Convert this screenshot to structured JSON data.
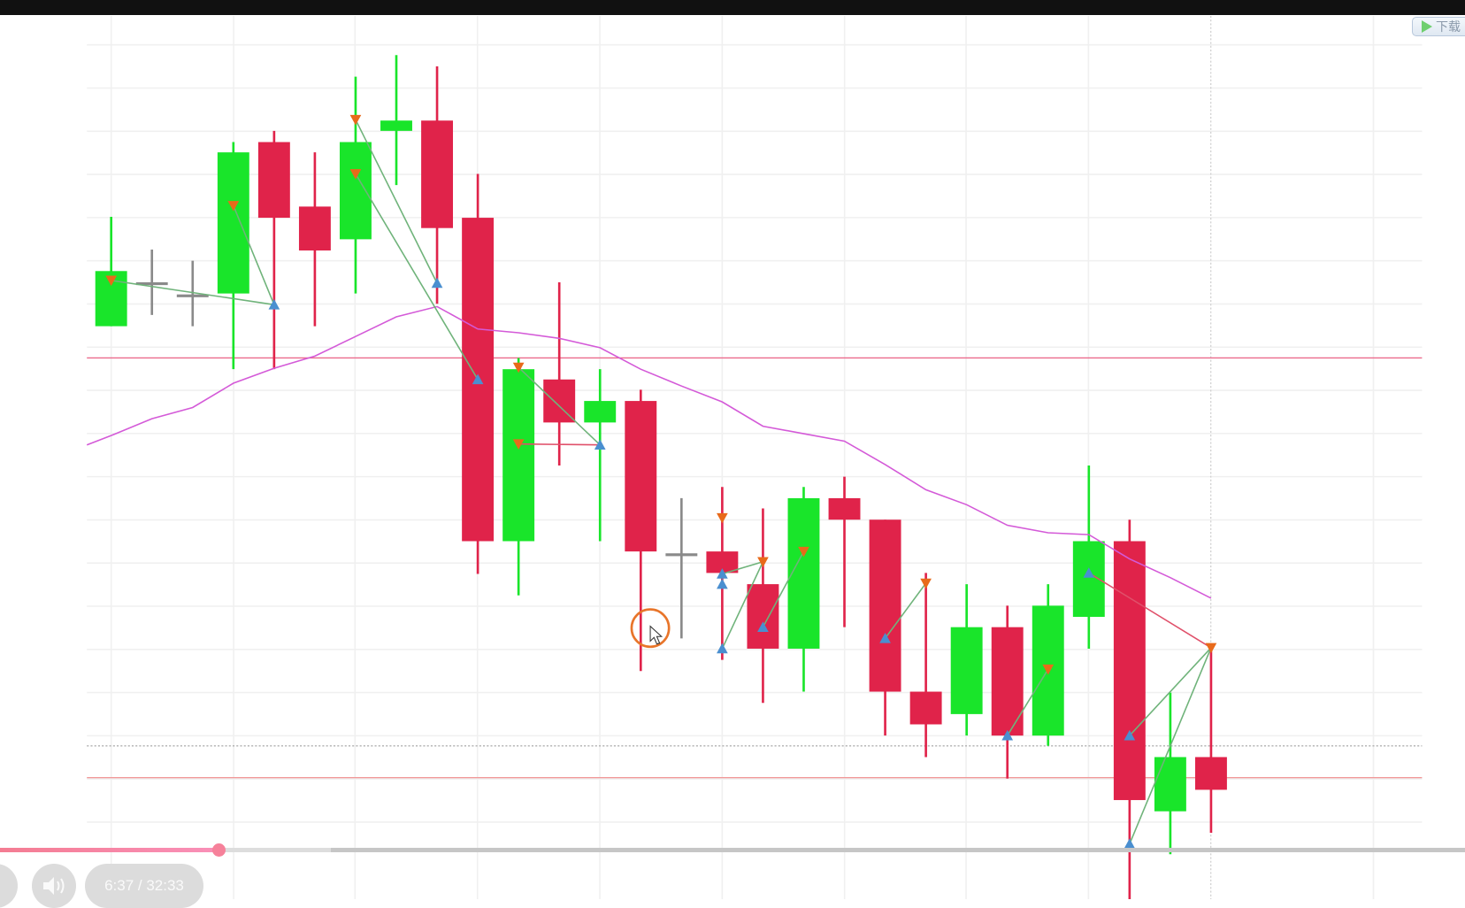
{
  "player": {
    "time_display": "6:37 / 32:33",
    "progress_fraction": 0.149,
    "download_label": "下载",
    "icons": {
      "volume": "volume-icon",
      "play": "play-icon",
      "download": "download-play-icon",
      "cursor": "mouse-cursor-icon"
    }
  },
  "chart_data": {
    "type": "candlestick",
    "title": "",
    "xlabel": "",
    "ylabel": "",
    "grid": true,
    "ylim": [
      0,
      100
    ],
    "colors": {
      "up": "#19e52a",
      "down": "#e0234a",
      "doji": "#8a8a8a",
      "ma": "#d45ad8",
      "zigzag_green": "#6fb37a",
      "zigzag_red": "#e0506a",
      "marker_down": "#e86a1a",
      "marker_up": "#4a8fd0",
      "level_upper": "#ec6a8c",
      "level_lower": "#f19a9a",
      "level_dotted": "#b0b0b0"
    },
    "candles": [
      [
        65.1,
        76.8,
        65.1,
        71.0
      ],
      [
        69.8,
        73.3,
        66.3,
        69.8
      ],
      [
        68.5,
        72.1,
        65.1,
        68.5
      ],
      [
        68.6,
        84.8,
        60.5,
        83.7
      ],
      [
        84.8,
        86.0,
        60.5,
        76.7
      ],
      [
        77.9,
        83.7,
        65.1,
        73.2
      ],
      [
        74.4,
        91.8,
        68.6,
        84.8
      ],
      [
        86.0,
        94.1,
        80.2,
        87.1
      ],
      [
        87.1,
        92.9,
        67.5,
        75.6
      ],
      [
        76.7,
        81.4,
        38.6,
        42.1
      ],
      [
        42.1,
        61.7,
        36.3,
        60.5
      ],
      [
        59.4,
        69.8,
        50.2,
        54.8
      ],
      [
        54.8,
        60.5,
        42.1,
        57.1
      ],
      [
        57.1,
        58.3,
        28.2,
        41.0
      ],
      [
        40.8,
        46.7,
        31.7,
        40.8
      ],
      [
        41.0,
        47.9,
        29.4,
        38.7
      ],
      [
        37.5,
        45.6,
        24.8,
        30.6
      ],
      [
        30.6,
        47.9,
        26.0,
        46.7
      ],
      [
        46.7,
        49.0,
        32.9,
        44.4
      ],
      [
        44.4,
        44.4,
        21.3,
        26.0
      ],
      [
        26.0,
        38.7,
        19.0,
        22.5
      ],
      [
        23.6,
        37.5,
        21.3,
        32.9
      ],
      [
        32.9,
        35.2,
        16.7,
        21.3
      ],
      [
        21.3,
        37.5,
        20.2,
        35.2
      ],
      [
        34.0,
        50.2,
        30.6,
        42.1
      ],
      [
        42.1,
        44.4,
        3.8,
        14.4
      ],
      [
        13.2,
        25.9,
        8.6,
        19.0
      ],
      [
        19.0,
        30.6,
        10.9,
        15.5
      ]
    ],
    "moving_average": [
      53.4,
      55.2,
      56.4,
      59.0,
      60.6,
      61.9,
      64.0,
      66.1,
      67.2,
      64.8,
      64.4,
      63.8,
      62.8,
      60.5,
      58.7,
      57.0,
      54.4,
      53.6,
      52.8,
      50.3,
      47.6,
      46.0,
      43.8,
      43.0,
      42.8,
      40.2,
      38.2,
      36.0
    ],
    "levels": [
      {
        "price": 61.7,
        "style": "upper"
      },
      {
        "price": 16.8,
        "style": "lower"
      },
      {
        "price": 20.2,
        "style": "dotted"
      }
    ],
    "markers_down": [
      [
        0,
        70.0
      ],
      [
        3,
        78.0
      ],
      [
        6,
        87.2
      ],
      [
        6,
        81.4
      ],
      [
        10,
        60.7
      ],
      [
        10,
        52.5
      ],
      [
        15,
        44.6
      ],
      [
        16,
        39.9
      ],
      [
        17,
        41.0
      ],
      [
        20,
        37.6
      ],
      [
        23,
        28.4
      ],
      [
        27,
        30.7
      ]
    ],
    "markers_up": [
      [
        4,
        67.4
      ],
      [
        8,
        69.7
      ],
      [
        9,
        59.4
      ],
      [
        12,
        52.4
      ],
      [
        15,
        38.6
      ],
      [
        15,
        37.5
      ],
      [
        15,
        30.6
      ],
      [
        16,
        32.9
      ],
      [
        19,
        31.7
      ],
      [
        22,
        21.3
      ],
      [
        24,
        38.7
      ],
      [
        25,
        21.3
      ],
      [
        25,
        9.7
      ]
    ],
    "zigzag_green": [
      [
        [
          0,
          70
        ],
        [
          4,
          67.4
        ]
      ],
      [
        [
          3,
          78
        ],
        [
          4,
          67.4
        ]
      ],
      [
        [
          6,
          87.2
        ],
        [
          8,
          69.7
        ]
      ],
      [
        [
          6,
          81.4
        ],
        [
          9,
          59.4
        ]
      ],
      [
        [
          10,
          60.7
        ],
        [
          12,
          52.4
        ]
      ],
      [
        [
          15,
          30.6
        ],
        [
          16,
          39.9
        ]
      ],
      [
        [
          15,
          38.6
        ],
        [
          16,
          39.9
        ]
      ],
      [
        [
          16,
          32.9
        ],
        [
          17,
          41.0
        ]
      ],
      [
        [
          19,
          31.7
        ],
        [
          20,
          37.6
        ]
      ],
      [
        [
          22,
          21.3
        ],
        [
          23,
          28.4
        ]
      ],
      [
        [
          25,
          21.3
        ],
        [
          27,
          30.7
        ]
      ],
      [
        [
          25,
          9.7
        ],
        [
          27,
          30.7
        ]
      ]
    ],
    "zigzag_red": [
      [
        [
          10,
          52.5
        ],
        [
          12,
          52.4
        ]
      ],
      [
        [
          24,
          38.7
        ],
        [
          27,
          30.7
        ]
      ]
    ]
  }
}
